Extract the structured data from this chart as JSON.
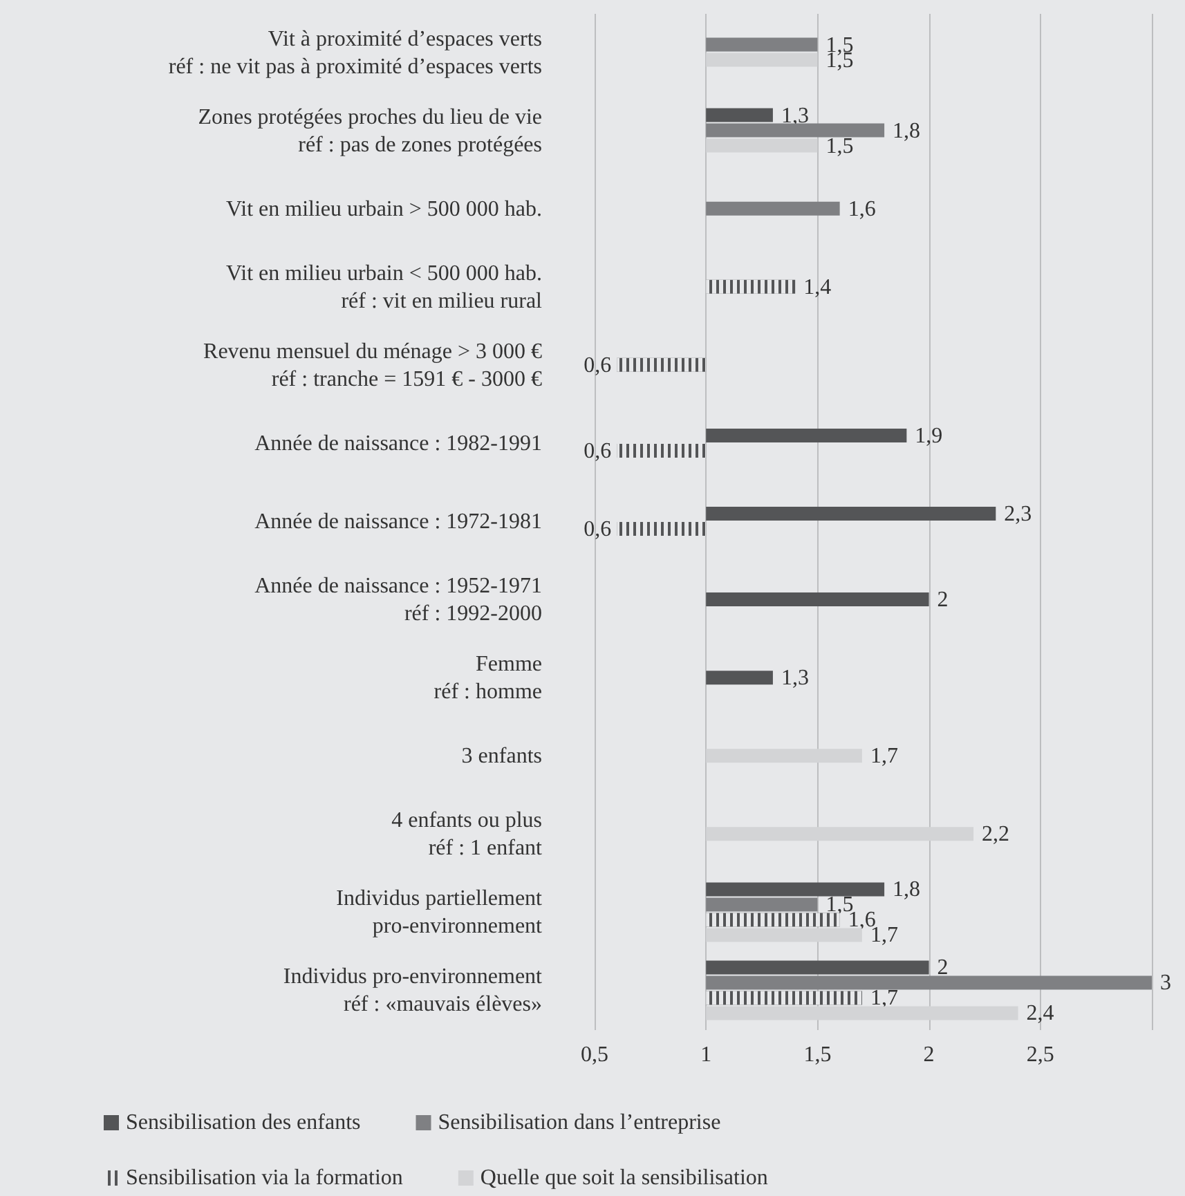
{
  "chart_data": {
    "type": "bar",
    "orientation": "horizontal",
    "categories": [
      "Vit à proximité d’espaces verts\nréf : ne vit pas à proximité d’espaces verts",
      "Zones protégées proches du lieu de vie\nréf : pas de zones protégées",
      "Vit en milieu urbain > 500 000 hab.",
      "Vit en milieu urbain < 500 000 hab.\nréf : vit en milieu rural",
      "Revenu mensuel du ménage > 3 000 €\nréf : tranche = 1591 € - 3000 €",
      "Année de naissance : 1982-1991",
      "Année de naissance : 1972-1981",
      "Année de naissance : 1952-1971\nréf : 1992-2000",
      "Femme\nréf : homme",
      "3 enfants",
      "4 enfants ou plus\nréf : 1 enfant",
      "Individus partiellement\npro-environnement",
      "Individus pro-environnement\nréf : «mauvais élèves»"
    ],
    "series": [
      {
        "name": "Sensibilisation des enfants",
        "color": "#545557",
        "base": [
          null,
          1,
          null,
          null,
          null,
          1,
          1,
          1,
          1,
          null,
          null,
          1,
          1
        ],
        "values": [
          null,
          0.3,
          null,
          null,
          null,
          0.9,
          1.3,
          1,
          0.3,
          null,
          null,
          0.8,
          1
        ],
        "value_labels": [
          null,
          "1,3",
          null,
          null,
          null,
          "1,9",
          "2,3",
          "2",
          "1,3",
          null,
          null,
          "1,8",
          "2"
        ]
      },
      {
        "name": "Sensibilisation dans l’entreprise",
        "color": "#7f8083",
        "base": [
          1,
          1,
          1,
          null,
          null,
          null,
          null,
          null,
          null,
          null,
          null,
          1,
          1
        ],
        "values": [
          0.5,
          0.8,
          0.6,
          null,
          null,
          null,
          null,
          null,
          null,
          null,
          null,
          0.5,
          2
        ],
        "value_labels": [
          "1,5",
          "1,8",
          "1,6",
          null,
          null,
          null,
          null,
          null,
          null,
          null,
          null,
          "1,5",
          "3"
        ]
      },
      {
        "name": "Sensibilisation via la formation",
        "color": "#545557",
        "base": [
          null,
          null,
          null,
          1,
          1,
          1,
          1,
          null,
          null,
          null,
          null,
          1,
          1
        ],
        "values": [
          null,
          null,
          null,
          0.4,
          -0.4,
          -0.4,
          -0.4,
          null,
          null,
          null,
          null,
          0.6,
          0.7
        ],
        "value_labels": [
          null,
          null,
          null,
          "1,4",
          "0,6",
          "0,6",
          "0,6",
          null,
          null,
          null,
          null,
          "1,6",
          "1,7"
        ]
      },
      {
        "name": "Quelle que soit la sensibilisation",
        "color": "#d3d4d6",
        "base": [
          1,
          1,
          null,
          null,
          null,
          null,
          null,
          null,
          null,
          1,
          1,
          1,
          1
        ],
        "values": [
          0.5,
          0.5,
          null,
          null,
          null,
          null,
          null,
          null,
          null,
          0.7,
          1.2,
          0.7,
          1.4
        ],
        "value_labels": [
          "1,5",
          "1,5",
          null,
          null,
          null,
          null,
          null,
          null,
          null,
          "1,7",
          "2,2",
          "1,7",
          "2,4"
        ]
      }
    ],
    "xlim": [
      0.5,
      3
    ],
    "xticks": [
      {
        "value": 0.5,
        "label": "0,5"
      },
      1,
      {
        "value": 1.5,
        "label": "1,5"
      },
      2,
      {
        "value": 2.5,
        "label": "2,5"
      },
      {
        "value": 3,
        "label": null
      }
    ],
    "grid": "x",
    "legend": "bottom"
  }
}
